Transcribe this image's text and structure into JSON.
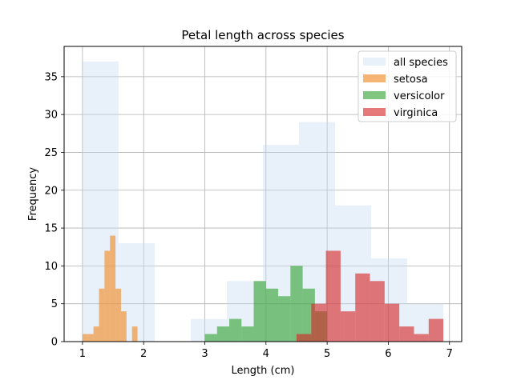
{
  "chart_data": {
    "type": "bar",
    "title": "Petal length across species",
    "xlabel": "Length (cm)",
    "ylabel": "Frequency",
    "xlim": [
      0.7,
      7.2
    ],
    "ylim": [
      0,
      39
    ],
    "xticks": [
      1,
      2,
      3,
      4,
      5,
      6,
      7
    ],
    "yticks": [
      0,
      5,
      10,
      15,
      20,
      25,
      30,
      35
    ],
    "grid": true,
    "legend_position": "top-right",
    "series": [
      {
        "name": "all species",
        "color": "#c6dbef",
        "opacity": 0.4,
        "bins": [
          {
            "x0": 1.0,
            "x1": 1.59,
            "y": 37
          },
          {
            "x0": 1.59,
            "x1": 2.18,
            "y": 13
          },
          {
            "x0": 2.18,
            "x1": 2.77,
            "y": 0
          },
          {
            "x0": 2.77,
            "x1": 3.36,
            "y": 3
          },
          {
            "x0": 3.36,
            "x1": 3.95,
            "y": 8
          },
          {
            "x0": 3.95,
            "x1": 4.54,
            "y": 26
          },
          {
            "x0": 4.54,
            "x1": 5.13,
            "y": 29
          },
          {
            "x0": 5.13,
            "x1": 5.72,
            "y": 18
          },
          {
            "x0": 5.72,
            "x1": 6.31,
            "y": 11
          },
          {
            "x0": 6.31,
            "x1": 6.9,
            "y": 5
          }
        ]
      },
      {
        "name": "setosa",
        "color": "#f28e2b",
        "opacity": 0.65,
        "bins": [
          {
            "x0": 1.0,
            "x1": 1.09,
            "y": 1
          },
          {
            "x0": 1.09,
            "x1": 1.18,
            "y": 1
          },
          {
            "x0": 1.18,
            "x1": 1.27,
            "y": 2
          },
          {
            "x0": 1.27,
            "x1": 1.36,
            "y": 7
          },
          {
            "x0": 1.36,
            "x1": 1.45,
            "y": 12
          },
          {
            "x0": 1.45,
            "x1": 1.54,
            "y": 14
          },
          {
            "x0": 1.54,
            "x1": 1.63,
            "y": 7
          },
          {
            "x0": 1.63,
            "x1": 1.72,
            "y": 4
          },
          {
            "x0": 1.72,
            "x1": 1.81,
            "y": 0
          },
          {
            "x0": 1.81,
            "x1": 1.9,
            "y": 2
          }
        ]
      },
      {
        "name": "versicolor",
        "color": "#2ca02c",
        "opacity": 0.6,
        "bins": [
          {
            "x0": 3.0,
            "x1": 3.2,
            "y": 1
          },
          {
            "x0": 3.2,
            "x1": 3.4,
            "y": 2
          },
          {
            "x0": 3.4,
            "x1": 3.6,
            "y": 3
          },
          {
            "x0": 3.6,
            "x1": 3.8,
            "y": 2
          },
          {
            "x0": 3.8,
            "x1": 4.0,
            "y": 8
          },
          {
            "x0": 4.0,
            "x1": 4.2,
            "y": 7
          },
          {
            "x0": 4.2,
            "x1": 4.4,
            "y": 6
          },
          {
            "x0": 4.4,
            "x1": 4.6,
            "y": 10
          },
          {
            "x0": 4.6,
            "x1": 4.8,
            "y": 7
          },
          {
            "x0": 4.8,
            "x1": 5.0,
            "y": 4
          }
        ]
      },
      {
        "name": "virginica",
        "color": "#d62728",
        "opacity": 0.62,
        "bins": [
          {
            "x0": 4.5,
            "x1": 4.74,
            "y": 1
          },
          {
            "x0": 4.74,
            "x1": 4.98,
            "y": 5
          },
          {
            "x0": 4.98,
            "x1": 5.22,
            "y": 12
          },
          {
            "x0": 5.22,
            "x1": 5.46,
            "y": 4
          },
          {
            "x0": 5.46,
            "x1": 5.7,
            "y": 9
          },
          {
            "x0": 5.7,
            "x1": 5.94,
            "y": 8
          },
          {
            "x0": 5.94,
            "x1": 6.18,
            "y": 5
          },
          {
            "x0": 6.18,
            "x1": 6.42,
            "y": 2
          },
          {
            "x0": 6.42,
            "x1": 6.66,
            "y": 1
          },
          {
            "x0": 6.66,
            "x1": 6.9,
            "y": 3
          }
        ]
      }
    ]
  }
}
